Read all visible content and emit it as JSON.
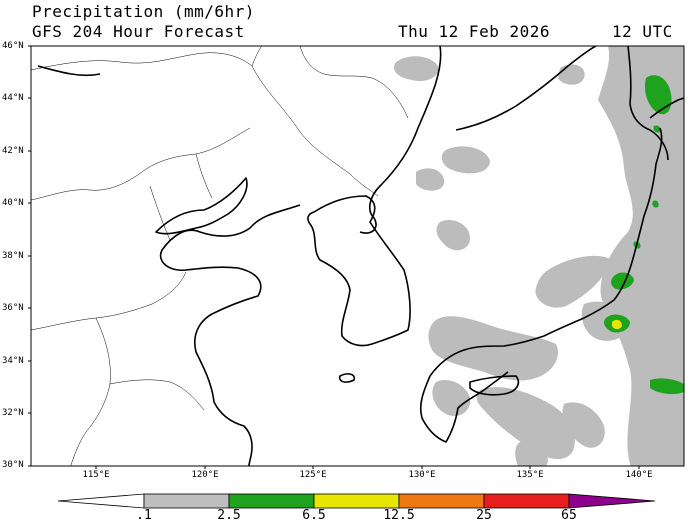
{
  "header": {
    "title_line1": "Precipitation (mm/6hr)",
    "title_line2": "GFS 204 Hour Forecast",
    "valid_date": "Thu 12 Feb 2026",
    "valid_hour": "12 UTC"
  },
  "map": {
    "lat_labels": [
      "46°N",
      "44°N",
      "42°N",
      "40°N",
      "38°N",
      "36°N",
      "34°N",
      "32°N",
      "30°N"
    ],
    "lon_labels": [
      "115°E",
      "120°E",
      "125°E",
      "130°E",
      "135°E",
      "140°E"
    ],
    "lat_range": [
      30,
      46
    ],
    "lon_range": [
      112,
      142
    ]
  },
  "colorbar": {
    "labels": [
      ".1",
      "2.5",
      "6.5",
      "12.5",
      "25",
      "65"
    ],
    "colors": [
      "#bebebe",
      "#1fa31f",
      "#e6e600",
      "#f07814",
      "#e61e1e",
      "#8c008c"
    ]
  }
}
